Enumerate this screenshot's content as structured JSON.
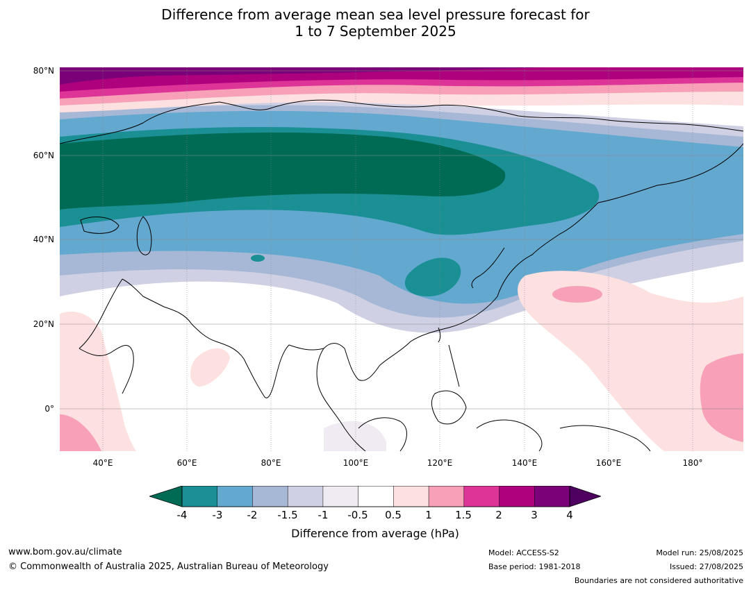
{
  "title_line1": "Difference from average mean sea level pressure forecast for",
  "title_line2": "1 to 7 September 2025",
  "y_ticks": [
    "80°N",
    "60°N",
    "40°N",
    "20°N",
    "0°"
  ],
  "x_ticks": [
    "40°E",
    "60°E",
    "80°E",
    "100°E",
    "120°E",
    "140°E",
    "160°E",
    "180°"
  ],
  "colorbar": {
    "labels": [
      "-4",
      "-3",
      "-2",
      "-1.5",
      "-1",
      "-0.5",
      "0.5",
      "1",
      "1.5",
      "2",
      "3",
      "4"
    ],
    "colors": {
      "under": "#006b54",
      "bins": [
        "#1a8f94",
        "#63a8cf",
        "#a6b8d6",
        "#d0d0e4",
        "#f0ebf2",
        "#ffffff",
        "#fde0e0",
        "#f7a0b8",
        "#dd3497",
        "#ae017e",
        "#7a0177"
      ],
      "over": "#4d0060"
    },
    "title": "Difference from average (hPa)"
  },
  "footer": {
    "website": "www.bom.gov.au/climate",
    "copyright": "© Commonwealth of Australia 2025, Australian Bureau of Meteorology",
    "model": "Model: ACCESS-S2",
    "base_period": "Base period: 1981-2018",
    "model_run": "Model run: 25/08/2025",
    "issued": "Issued: 27/08/2025",
    "disclaimer": "Boundaries are not considered authoritative"
  }
}
